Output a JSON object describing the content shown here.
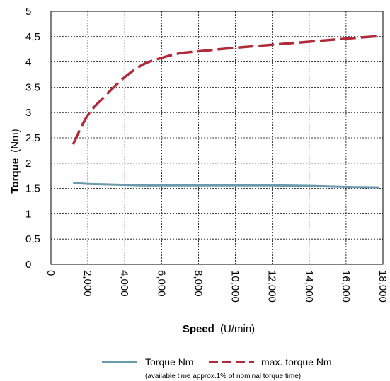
{
  "chart_data": {
    "type": "line",
    "xlabel_bold": "Speed",
    "xlabel_unit": "(U/min)",
    "ylabel_bold": "Torque",
    "ylabel_unit": "(Nm)",
    "xlim": [
      0,
      18000
    ],
    "ylim": [
      0,
      5
    ],
    "x_ticks": [
      0,
      2000,
      4000,
      6000,
      8000,
      10000,
      12000,
      14000,
      16000,
      18000
    ],
    "x_tick_labels": [
      "0",
      "2,000",
      "4,000",
      "6,000",
      "8,000",
      "10,000",
      "12,000",
      "14,000",
      "16,000",
      "18,000"
    ],
    "y_ticks": [
      0,
      0.5,
      1,
      1.5,
      2,
      2.5,
      3,
      3.5,
      4,
      4.5,
      5
    ],
    "y_tick_labels": [
      "0",
      "0,5",
      "1",
      "1,5",
      "2",
      "2,5",
      "3",
      "3,5",
      "4",
      "4,5",
      "5"
    ],
    "grid": true,
    "legend_position": "bottom",
    "series": [
      {
        "name": "Torque Nm",
        "color": "#6a9aab",
        "style": "solid",
        "x": [
          1200,
          2000,
          3000,
          4000,
          5000,
          6000,
          8000,
          10000,
          12000,
          14000,
          16000,
          17800
        ],
        "y": [
          1.61,
          1.59,
          1.58,
          1.57,
          1.56,
          1.56,
          1.56,
          1.56,
          1.56,
          1.55,
          1.53,
          1.52
        ]
      },
      {
        "name": "max. torque Nm",
        "color": "#b02a3a",
        "style": "dashed",
        "x": [
          1200,
          2000,
          3000,
          4000,
          5000,
          6000,
          7000,
          8000,
          10000,
          12000,
          14000,
          16000,
          17800
        ],
        "y": [
          2.37,
          2.95,
          3.35,
          3.7,
          3.95,
          4.08,
          4.17,
          4.21,
          4.28,
          4.34,
          4.4,
          4.46,
          4.51
        ]
      }
    ],
    "note": "(available time approx.1% of nominal torque time)"
  }
}
